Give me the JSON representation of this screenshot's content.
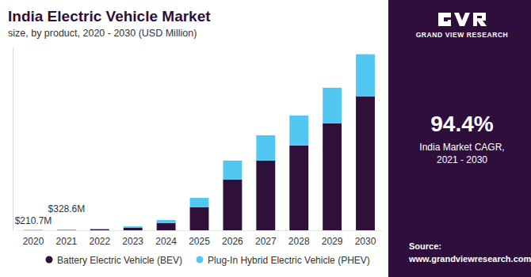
{
  "chart_data": {
    "type": "bar",
    "stacked": true,
    "title": "India Electric Vehicle Market",
    "subtitle": "size, by product, 2020 - 2030 (USD Million)",
    "categories": [
      "2020",
      "2021",
      "2022",
      "2023",
      "2024",
      "2025",
      "2026",
      "2027",
      "2028",
      "2029",
      "2030"
    ],
    "series": [
      {
        "name": "Battery Electric Vehicle (BEV)",
        "color": "#2e1038",
        "values": [
          160.2,
          250.1,
          850,
          2000,
          5300,
          17000,
          37500,
          51500,
          62600,
          79000,
          98900
        ]
      },
      {
        "name": "Plug-In Hybrid Electric Vehicle (PHEV)",
        "color": "#52c7f2",
        "values": [
          50.5,
          78.5,
          350,
          900,
          2300,
          7000,
          14000,
          18700,
          22200,
          26300,
          31100
        ]
      }
    ],
    "ylim": [
      0,
      135000
    ],
    "yticks": [],
    "tick_labels": "x",
    "grid": false,
    "legend": "bottom",
    "annotations": [
      "$210.7M",
      "$328.6M"
    ],
    "brand": "GRAND VIEW RESEARCH",
    "cagr": "94.4%",
    "cagr_label": [
      "India Market CAGR,",
      "2021 - 2030"
    ],
    "source_label": "Source:",
    "source": "www.grandviewresearch.com"
  }
}
